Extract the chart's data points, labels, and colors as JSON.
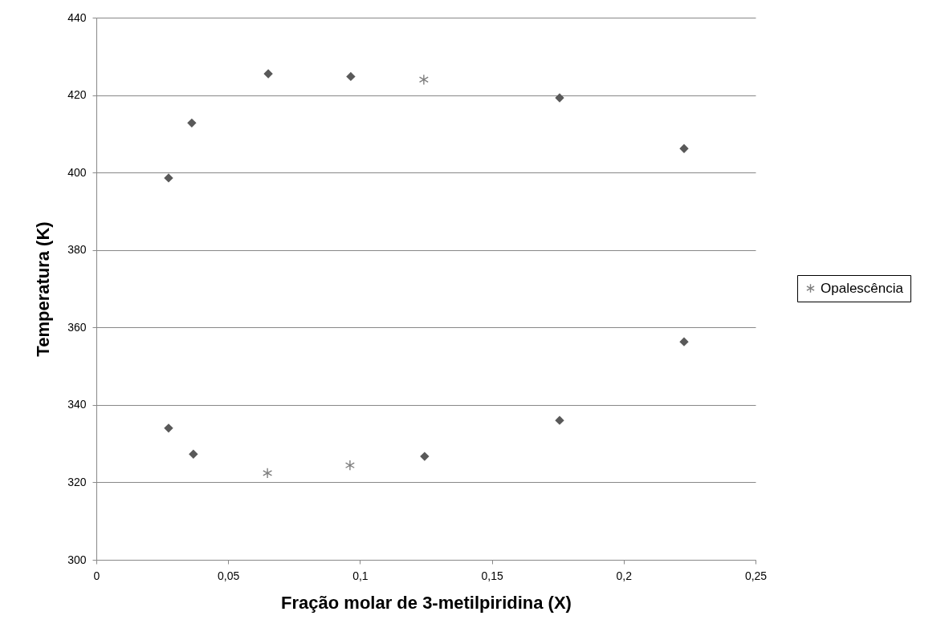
{
  "chart_data": {
    "type": "scatter",
    "xlabel": "Fração molar de 3-metilpiridina  (X)",
    "ylabel": "Temperatura (K)",
    "xlim": [
      0,
      0.25
    ],
    "xticks": [
      0,
      {
        "value": 0.05,
        "label": "0,05"
      },
      {
        "value": 0.1,
        "label": "0,1"
      },
      {
        "value": 0.15,
        "label": "0,15"
      },
      {
        "value": 0.2,
        "label": "0,2"
      },
      {
        "value": 0.25,
        "label": "0,25"
      }
    ],
    "ylim": [
      300,
      440
    ],
    "yticks": [
      300,
      320,
      340,
      360,
      380,
      400,
      420,
      440
    ],
    "grid": "y",
    "legend": "right",
    "series": [
      {
        "color": "#595959",
        "marker": "diamond",
        "x": [
          0.0274,
          0.0362,
          0.0652,
          0.0965,
          0.1757,
          0.2229,
          0.0274,
          0.0368,
          0.1245,
          0.1757,
          0.2229
        ],
        "values": [
          398.6,
          412.8,
          425.5,
          424.8,
          419.3,
          406.2,
          334.0,
          327.3,
          326.7,
          336.0,
          356.3
        ]
      },
      {
        "name": "Opalescência",
        "color": "#7f7f7f",
        "marker": "cross",
        "x": [
          0.1242,
          0.0649,
          0.0962
        ],
        "values": [
          424.0,
          322.4,
          324.4
        ]
      }
    ]
  }
}
